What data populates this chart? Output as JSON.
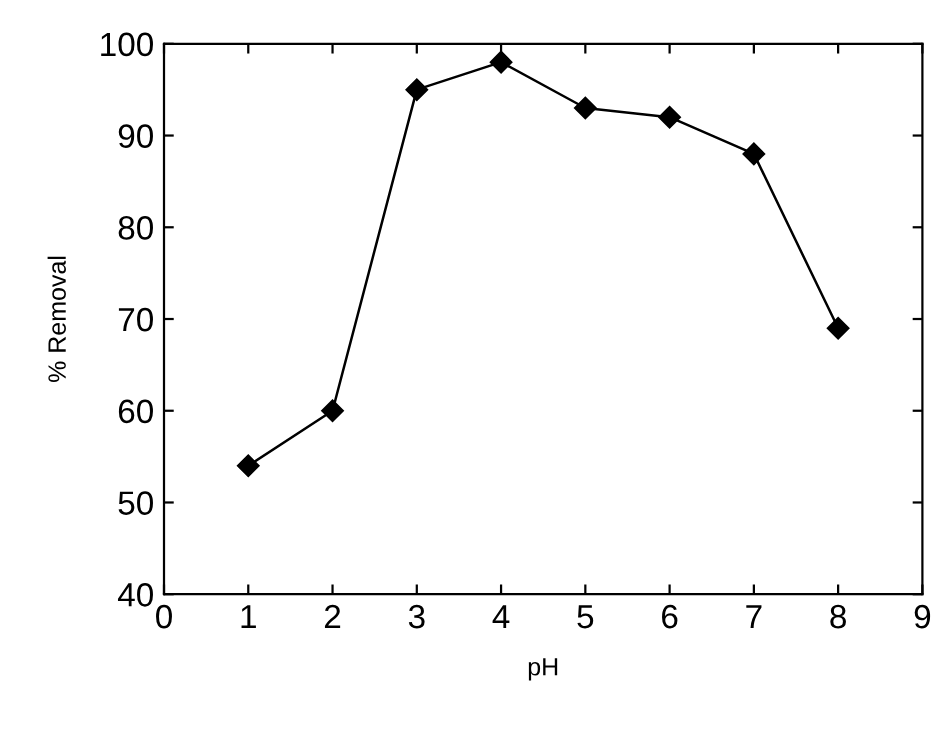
{
  "chart_data": {
    "type": "line",
    "xlabel": "pH",
    "ylabel": "% Removal",
    "x": [
      1,
      2,
      3,
      4,
      5,
      6,
      7,
      8
    ],
    "series": [
      {
        "color": "#000000",
        "values": [
          54,
          60,
          95,
          98,
          93,
          92,
          88,
          69
        ]
      }
    ],
    "xlim": [
      0,
      9
    ],
    "xticks": [
      0,
      1,
      2,
      3,
      4,
      5,
      6,
      7,
      8,
      9
    ],
    "ylim": [
      40,
      100
    ],
    "yticks": [
      40,
      50,
      60,
      70,
      80,
      90,
      100
    ],
    "marker": "diamond",
    "line_style": "solid",
    "grid": false,
    "legend": false
  }
}
